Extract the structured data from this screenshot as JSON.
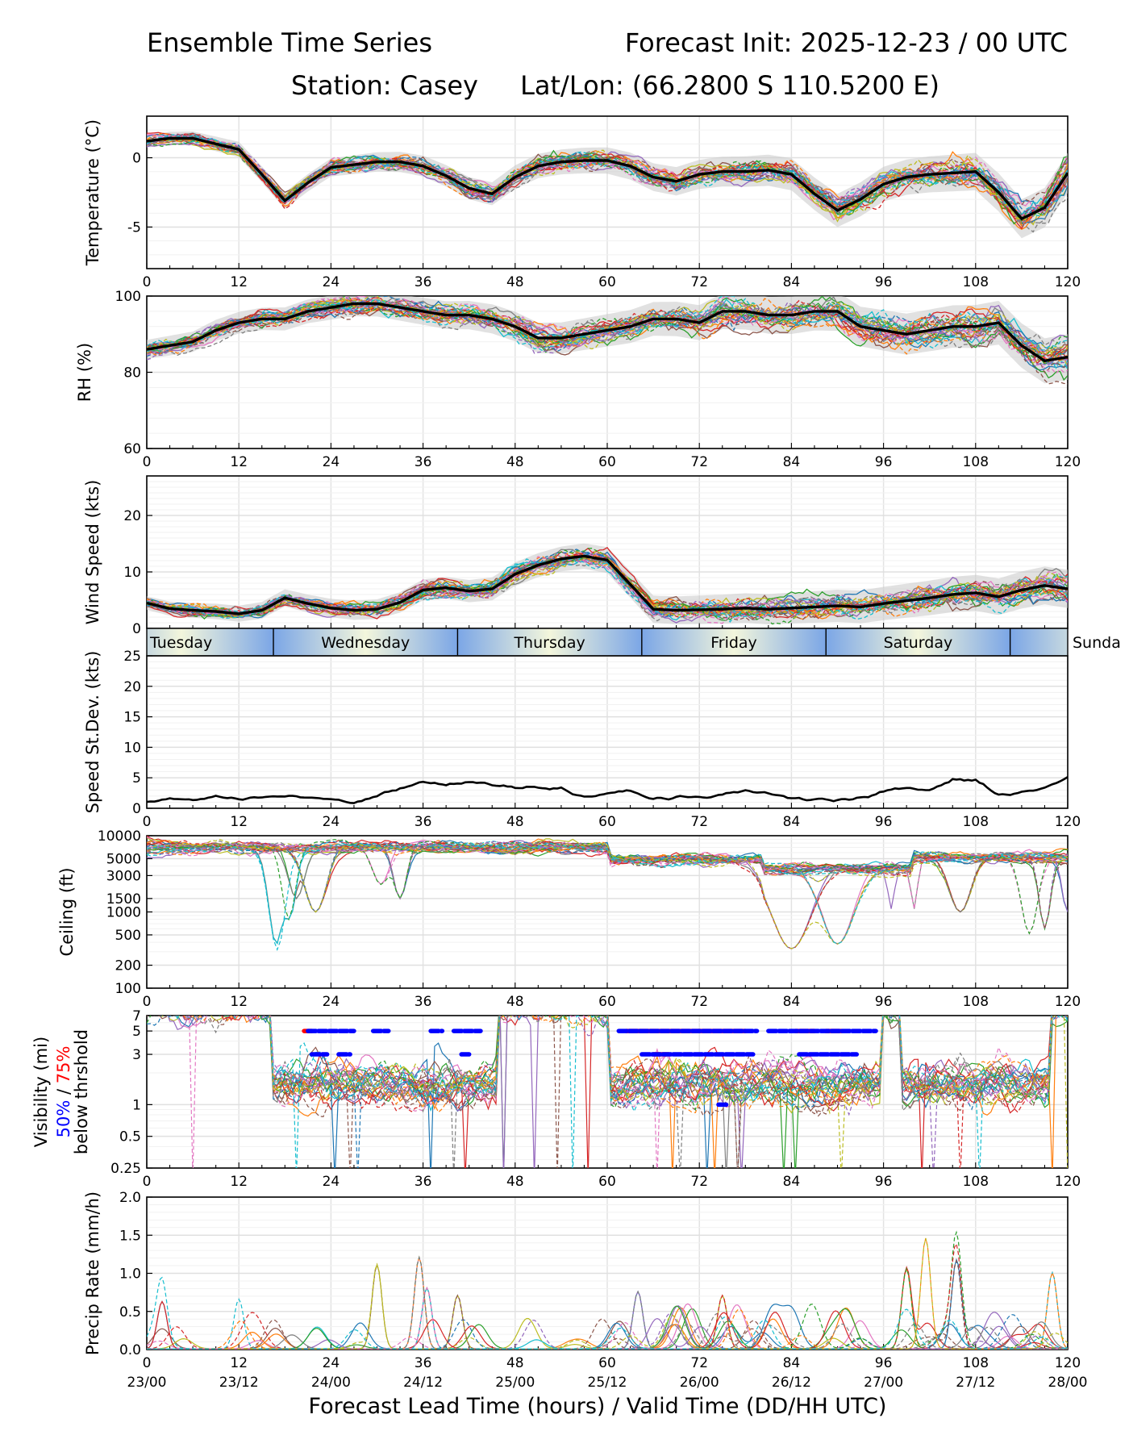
{
  "header": {
    "title_left": "Ensemble Time Series",
    "title_right": "Forecast Init: 2025-12-23 / 00 UTC",
    "station": "Station: Casey",
    "latlon": "Lat/Lon: (66.2800 S 110.5200 E)"
  },
  "xaxis": {
    "label": "Forecast Lead Time (hours) / Valid Time (DD/HH UTC)",
    "lead_ticks": [
      "0",
      "12",
      "24",
      "36",
      "48",
      "60",
      "72",
      "84",
      "96",
      "108",
      "120"
    ],
    "valid_ticks": [
      "23/00",
      "23/12",
      "24/00",
      "24/12",
      "25/00",
      "25/12",
      "26/00",
      "26/12",
      "27/00",
      "27/12",
      "28/00"
    ]
  },
  "day_band": {
    "labels": [
      "Tuesday",
      "Wednesday",
      "Thursday",
      "Friday",
      "Saturday",
      "Sunda"
    ],
    "boundaries_hours": [
      16.5,
      40.5,
      64.5,
      88.5,
      112.5
    ]
  },
  "colors": {
    "ensemble": [
      "#1f77b4",
      "#ff7f0e",
      "#2ca02c",
      "#d62728",
      "#9467bd",
      "#8c564b",
      "#e377c2",
      "#7f7f7f",
      "#bcbd22",
      "#17becf"
    ],
    "mean": "#000000",
    "band": "#c8c8c8",
    "vis_50": "#0000ff",
    "vis_75": "#ff0000",
    "day_light": "#f3f6dc",
    "day_dark": "#7ba6e6"
  },
  "chart_data": [
    {
      "id": "temperature",
      "type": "line",
      "ylabel": "Temperature (°C)",
      "ylim": [
        -8,
        3
      ],
      "yticks": [
        "0",
        "-5"
      ],
      "ytick_values": [
        0,
        -5
      ],
      "x": [
        0,
        3,
        6,
        9,
        12,
        15,
        18,
        21,
        24,
        27,
        30,
        33,
        36,
        39,
        42,
        45,
        48,
        51,
        54,
        57,
        60,
        63,
        66,
        69,
        72,
        75,
        78,
        81,
        84,
        87,
        90,
        93,
        96,
        99,
        102,
        105,
        108,
        111,
        114,
        117,
        120
      ],
      "mean": [
        1.2,
        1.4,
        1.4,
        1.0,
        0.6,
        -1.2,
        -3.1,
        -1.8,
        -0.7,
        -0.5,
        -0.3,
        -0.3,
        -0.6,
        -1.3,
        -2.2,
        -2.6,
        -1.4,
        -0.6,
        -0.3,
        -0.2,
        -0.2,
        -0.6,
        -1.4,
        -1.7,
        -1.2,
        -1.0,
        -1.0,
        -0.9,
        -1.2,
        -2.6,
        -3.8,
        -3.0,
        -1.9,
        -1.4,
        -1.2,
        -1.1,
        -1.0,
        -2.5,
        -4.4,
        -3.6,
        -1.1
      ],
      "series_count": 30
    },
    {
      "id": "rh",
      "type": "line",
      "ylabel": "RH (%)",
      "ylim": [
        60,
        100
      ],
      "yticks": [
        "100",
        "80",
        "60"
      ],
      "ytick_values": [
        100,
        80,
        60
      ],
      "x": [
        0,
        3,
        6,
        9,
        12,
        15,
        18,
        21,
        24,
        27,
        30,
        33,
        36,
        39,
        42,
        45,
        48,
        51,
        54,
        57,
        60,
        63,
        66,
        69,
        72,
        75,
        78,
        81,
        84,
        87,
        90,
        93,
        96,
        99,
        102,
        105,
        108,
        111,
        114,
        117,
        120
      ],
      "mean": [
        86,
        87,
        88,
        91,
        93,
        94,
        94,
        96,
        97,
        98,
        98,
        97,
        96,
        95,
        95,
        94,
        92,
        89,
        89,
        90,
        91,
        92,
        94,
        94,
        93,
        96,
        96,
        95,
        95,
        96,
        96,
        92,
        91,
        90,
        91,
        92,
        92,
        93,
        87,
        83,
        84
      ],
      "series_count": 30
    },
    {
      "id": "wind_speed",
      "type": "line",
      "ylabel": "Wind Speed (kts)",
      "ylim": [
        0,
        27
      ],
      "yticks": [
        "20",
        "10",
        "0"
      ],
      "ytick_values": [
        20,
        10,
        0
      ],
      "x": [
        0,
        3,
        6,
        9,
        12,
        15,
        18,
        21,
        24,
        27,
        30,
        33,
        36,
        39,
        42,
        45,
        48,
        51,
        54,
        57,
        60,
        63,
        66,
        69,
        72,
        75,
        78,
        81,
        84,
        87,
        90,
        93,
        96,
        99,
        102,
        105,
        108,
        111,
        114,
        117,
        120
      ],
      "mean": [
        4.5,
        3.5,
        3.2,
        3.0,
        2.6,
        3.2,
        5.4,
        4.4,
        3.6,
        3.2,
        3.4,
        4.6,
        6.8,
        7.2,
        6.6,
        7.0,
        9.6,
        11.2,
        12.3,
        12.8,
        12.1,
        7.8,
        3.4,
        3.2,
        3.3,
        3.4,
        3.6,
        3.4,
        3.6,
        3.8,
        4.0,
        3.8,
        4.4,
        4.9,
        5.4,
        6.0,
        6.3,
        5.6,
        6.8,
        7.6,
        7.0
      ],
      "series_count": 30
    },
    {
      "id": "speed_stdev",
      "type": "line",
      "ylabel": "Speed St.Dev. (kts)",
      "ylim": [
        0,
        25
      ],
      "yticks": [
        "25",
        "20",
        "15",
        "10",
        "5",
        "0"
      ],
      "ytick_values": [
        25,
        20,
        15,
        10,
        5,
        0
      ],
      "x": [
        0,
        3,
        6,
        9,
        12,
        15,
        18,
        21,
        24,
        27,
        30,
        33,
        36,
        39,
        42,
        45,
        48,
        51,
        54,
        57,
        60,
        63,
        66,
        69,
        72,
        75,
        78,
        81,
        84,
        87,
        90,
        93,
        96,
        99,
        102,
        105,
        108,
        111,
        114,
        117,
        120
      ],
      "values": [
        1.1,
        1.6,
        1.3,
        1.8,
        1.4,
        1.8,
        2.0,
        1.8,
        1.5,
        0.9,
        2.0,
        3.3,
        4.2,
        3.8,
        4.4,
        3.8,
        3.5,
        3.5,
        3.1,
        2.0,
        2.5,
        3.0,
        1.4,
        1.8,
        1.7,
        2.4,
        3.0,
        2.5,
        1.6,
        1.3,
        1.5,
        1.7,
        2.8,
        3.2,
        3.0,
        4.8,
        4.6,
        2.2,
        2.6,
        3.4,
        4.9
      ]
    },
    {
      "id": "ceiling",
      "type": "line",
      "ylabel": "Ceiling (ft)",
      "yscale": "log",
      "ylim": [
        100,
        10000
      ],
      "yticks": [
        "10000",
        "5000",
        "3000",
        "1500",
        "1000",
        "500",
        "200",
        "100"
      ],
      "ytick_values": [
        10000,
        5000,
        3000,
        1500,
        1000,
        500,
        200,
        100
      ],
      "series_count": 30
    },
    {
      "id": "visibility",
      "type": "line",
      "ylabel": "Visibility (mi)",
      "ylabel_50": "50%",
      "ylabel_sep": " / ",
      "ylabel_75": "75%",
      "ylabel_2": "below thrshold",
      "yscale": "log",
      "ylim": [
        0.25,
        7
      ],
      "yticks": [
        "7",
        "5",
        "3",
        "1",
        "0.5",
        "0.25"
      ],
      "ytick_values": [
        7,
        5,
        3,
        1,
        0.5,
        0.25
      ],
      "threshold_50_below": [
        {
          "level": 5,
          "start": 21,
          "end": 27
        },
        {
          "level": 5,
          "start": 29.5,
          "end": 31.5
        },
        {
          "level": 5,
          "start": 37,
          "end": 38.5
        },
        {
          "level": 5,
          "start": 40,
          "end": 43.5
        },
        {
          "level": 5,
          "start": 61.5,
          "end": 79.5
        },
        {
          "level": 5,
          "start": 81,
          "end": 95
        },
        {
          "level": 3,
          "start": 21.5,
          "end": 23.5
        },
        {
          "level": 3,
          "start": 25,
          "end": 26.5
        },
        {
          "level": 3,
          "start": 41,
          "end": 42
        },
        {
          "level": 3,
          "start": 64.5,
          "end": 79
        },
        {
          "level": 3,
          "start": 85,
          "end": 92.5
        },
        {
          "level": 1,
          "start": 74.5,
          "end": 75.5
        }
      ],
      "threshold_75_below": [
        {
          "level": 5,
          "start": 20.5,
          "end": 21.5
        },
        {
          "level": 5,
          "start": 62.5,
          "end": 78
        },
        {
          "level": 5,
          "start": 84.5,
          "end": 87
        },
        {
          "level": 5,
          "start": 88.5,
          "end": 90.5
        },
        {
          "level": 3,
          "start": 66,
          "end": 68
        }
      ],
      "series_count": 30
    },
    {
      "id": "precip",
      "type": "line",
      "ylabel": "Precip Rate (mm/h)",
      "ylim": [
        0,
        2
      ],
      "yticks": [
        "2.0",
        "1.5",
        "1.0",
        "0.5",
        "0.0"
      ],
      "ytick_values": [
        2.0,
        1.5,
        1.0,
        0.5,
        0.0
      ],
      "peaks": [
        {
          "x": 2,
          "y": 0.62
        },
        {
          "x": 12,
          "y": 0.65
        },
        {
          "x": 30,
          "y": 1.1
        },
        {
          "x": 35.5,
          "y": 1.2
        },
        {
          "x": 36.5,
          "y": 0.8
        },
        {
          "x": 40.5,
          "y": 0.7
        },
        {
          "x": 64,
          "y": 0.75
        },
        {
          "x": 75,
          "y": 0.7
        },
        {
          "x": 99,
          "y": 1.05
        },
        {
          "x": 101.5,
          "y": 1.45
        },
        {
          "x": 105.5,
          "y": 1.15
        },
        {
          "x": 118,
          "y": 1.0
        }
      ],
      "series_count": 30
    }
  ]
}
